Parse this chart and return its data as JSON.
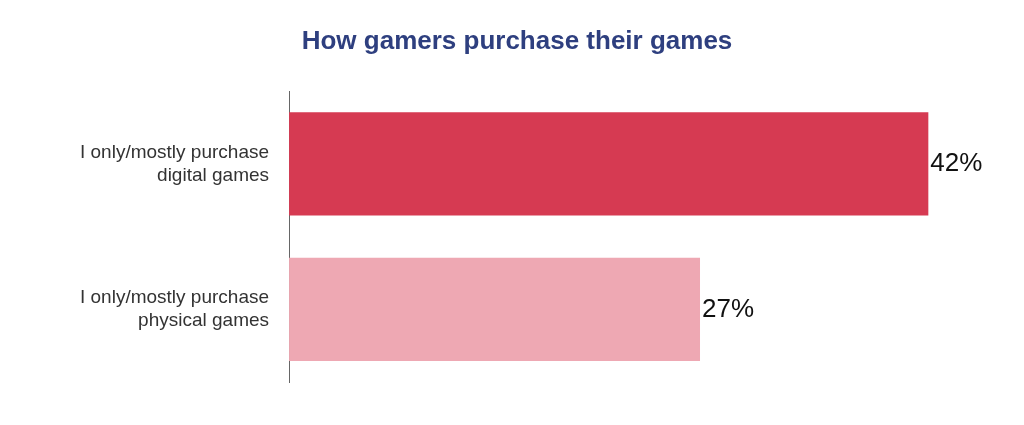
{
  "chart_data": {
    "type": "bar",
    "orientation": "horizontal",
    "title": "How gamers purchase their games",
    "categories": [
      "I only/mostly purchase digital games",
      "I only/mostly purchase physical games"
    ],
    "values": [
      42,
      27
    ],
    "colors": [
      "#d63a52",
      "#eea8b3"
    ],
    "value_labels": [
      "42%",
      "27%"
    ],
    "legend": false
  }
}
